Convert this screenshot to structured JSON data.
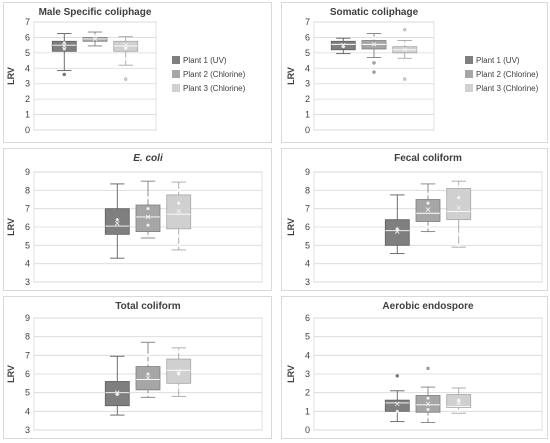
{
  "colors": {
    "plant1": "#7f7f7f",
    "plant2": "#a6a6a6",
    "plant3": "#d0d0d0",
    "grid": "#d9d9d9",
    "text": "#404040"
  },
  "chart_data": [
    {
      "type": "box",
      "title": "Male Specific coliphage",
      "title_italic": false,
      "ylabel": "LRV",
      "ylim": [
        0,
        7
      ],
      "yticks": [
        0,
        1,
        2,
        3,
        4,
        5,
        6,
        7
      ],
      "grid": true,
      "legend": "right",
      "series": [
        {
          "name": "Plant 1 (UV)",
          "min": 3.85,
          "q1": 5.1,
          "median": 5.5,
          "q3": 5.75,
          "max": 6.25,
          "mean": 5.45,
          "outliers": [
            3.6
          ],
          "points": [
            5.25,
            5.65
          ]
        },
        {
          "name": "Plant 2 (Chlorine)",
          "min": 5.45,
          "q1": 5.75,
          "median": 5.9,
          "q3": 6.0,
          "max": 6.35,
          "mean": 5.9,
          "outliers": [],
          "points": [
            6.1
          ]
        },
        {
          "name": "Plant 3 (Chlorine)",
          "min": 4.2,
          "q1": 5.1,
          "median": 5.45,
          "q3": 5.75,
          "max": 6.05,
          "mean": 5.5,
          "outliers": [
            3.3
          ],
          "points": [
            4.6,
            5.3
          ]
        }
      ]
    },
    {
      "type": "box",
      "title": "Somatic coliphage",
      "title_italic": false,
      "ylabel": "LRV",
      "ylim": [
        0,
        7
      ],
      "yticks": [
        0,
        1,
        2,
        3,
        4,
        5,
        6,
        7
      ],
      "grid": true,
      "legend": "right",
      "series": [
        {
          "name": "Plant 1 (UV)",
          "min": 4.95,
          "q1": 5.2,
          "median": 5.55,
          "q3": 5.75,
          "max": 5.95,
          "mean": 5.5,
          "outliers": [],
          "points": [
            5.4
          ]
        },
        {
          "name": "Plant 2 (Chlorine)",
          "min": 4.7,
          "q1": 5.25,
          "median": 5.55,
          "q3": 5.8,
          "max": 6.25,
          "mean": 5.55,
          "outliers": [
            4.35,
            3.75
          ],
          "points": [
            5.95
          ]
        },
        {
          "name": "Plant 3 (Chlorine)",
          "min": 4.65,
          "q1": 5.0,
          "median": 5.2,
          "q3": 5.4,
          "max": 5.8,
          "mean": 5.2,
          "outliers": [
            6.5,
            3.3
          ],
          "points": [
            5.6
          ]
        }
      ]
    },
    {
      "type": "box",
      "title": "E. coli",
      "title_italic": true,
      "ylabel": "LRV",
      "ylim": [
        3,
        9
      ],
      "yticks": [
        3,
        4,
        5,
        6,
        7,
        8,
        9
      ],
      "grid": true,
      "legend": "none",
      "series": [
        {
          "name": "Plant 1 (UV)",
          "min": 4.3,
          "q1": 5.6,
          "median": 6.05,
          "q3": 7.0,
          "max": 8.35,
          "mean": 6.2,
          "outliers": [],
          "points": [
            6.4
          ]
        },
        {
          "name": "Plant 2 (Chlorine)",
          "min": 5.4,
          "q1": 5.75,
          "median": 6.55,
          "q3": 7.2,
          "max": 8.5,
          "mean": 6.55,
          "outliers": [],
          "points": [
            5.5,
            6.1,
            7.6,
            7.0
          ]
        },
        {
          "name": "Plant 3 (Chlorine)",
          "min": 4.75,
          "q1": 5.9,
          "median": 6.7,
          "q3": 7.75,
          "max": 8.45,
          "mean": 6.85,
          "outliers": [],
          "points": [
            5.0,
            5.5,
            7.3,
            8.0
          ]
        }
      ]
    },
    {
      "type": "box",
      "title": "Fecal coliform",
      "title_italic": false,
      "ylabel": "LRV",
      "ylim": [
        3,
        9
      ],
      "yticks": [
        3,
        4,
        5,
        6,
        7,
        8,
        9
      ],
      "grid": true,
      "legend": "none",
      "series": [
        {
          "name": "Plant 1 (UV)",
          "min": 4.55,
          "q1": 5.0,
          "median": 5.8,
          "q3": 6.4,
          "max": 7.75,
          "mean": 5.75,
          "outliers": [],
          "points": [
            5.9
          ]
        },
        {
          "name": "Plant 2 (Chlorine)",
          "min": 5.75,
          "q1": 6.3,
          "median": 6.75,
          "q3": 7.5,
          "max": 8.35,
          "mean": 6.95,
          "outliers": [],
          "points": [
            6.0,
            7.3,
            7.8
          ]
        },
        {
          "name": "Plant 3 (Chlorine)",
          "min": 4.9,
          "q1": 6.4,
          "median": 6.85,
          "q3": 8.1,
          "max": 8.5,
          "mean": 7.05,
          "outliers": [],
          "points": [
            5.0,
            5.6,
            7.6,
            8.2
          ]
        }
      ]
    },
    {
      "type": "box",
      "title": "Total coliform",
      "title_italic": false,
      "ylabel": "LRV",
      "ylim": [
        3,
        9
      ],
      "yticks": [
        3,
        4,
        5,
        6,
        7,
        8,
        9
      ],
      "grid": true,
      "legend": "none",
      "series": [
        {
          "name": "Plant 1 (UV)",
          "min": 3.8,
          "q1": 4.3,
          "median": 5.0,
          "q3": 5.6,
          "max": 6.95,
          "mean": 5.0,
          "outliers": [],
          "points": [
            4.9
          ]
        },
        {
          "name": "Plant 2 (Chlorine)",
          "min": 4.75,
          "q1": 5.15,
          "median": 5.7,
          "q3": 6.4,
          "max": 7.7,
          "mean": 5.8,
          "outliers": [],
          "points": [
            4.9,
            6.0,
            6.6,
            7.0
          ]
        },
        {
          "name": "Plant 3 (Chlorine)",
          "min": 4.8,
          "q1": 5.5,
          "median": 6.2,
          "q3": 6.8,
          "max": 7.4,
          "mean": 6.15,
          "outliers": [],
          "points": [
            5.3,
            6.0,
            7.2
          ]
        }
      ]
    },
    {
      "type": "box",
      "title": "Aerobic endospore",
      "title_italic": false,
      "ylabel": "LRV",
      "ylim": [
        0,
        6
      ],
      "yticks": [
        0,
        1,
        2,
        3,
        4,
        5,
        6
      ],
      "grid": true,
      "legend": "none",
      "series": [
        {
          "name": "Plant 1 (UV)",
          "min": 0.45,
          "q1": 1.0,
          "median": 1.45,
          "q3": 1.6,
          "max": 2.1,
          "mean": 1.4,
          "outliers": [
            2.9
          ],
          "points": [
            1.0
          ]
        },
        {
          "name": "Plant 2 (Chlorine)",
          "min": 0.4,
          "q1": 0.95,
          "median": 1.35,
          "q3": 1.85,
          "max": 2.3,
          "mean": 1.4,
          "outliers": [
            3.3
          ],
          "points": [
            0.7,
            1.1,
            1.7
          ]
        },
        {
          "name": "Plant 3 (Chlorine)",
          "min": 0.9,
          "q1": 1.2,
          "median": 1.25,
          "q3": 1.9,
          "max": 2.25,
          "mean": 1.45,
          "outliers": [],
          "points": [
            1.0,
            1.6
          ]
        }
      ]
    }
  ]
}
